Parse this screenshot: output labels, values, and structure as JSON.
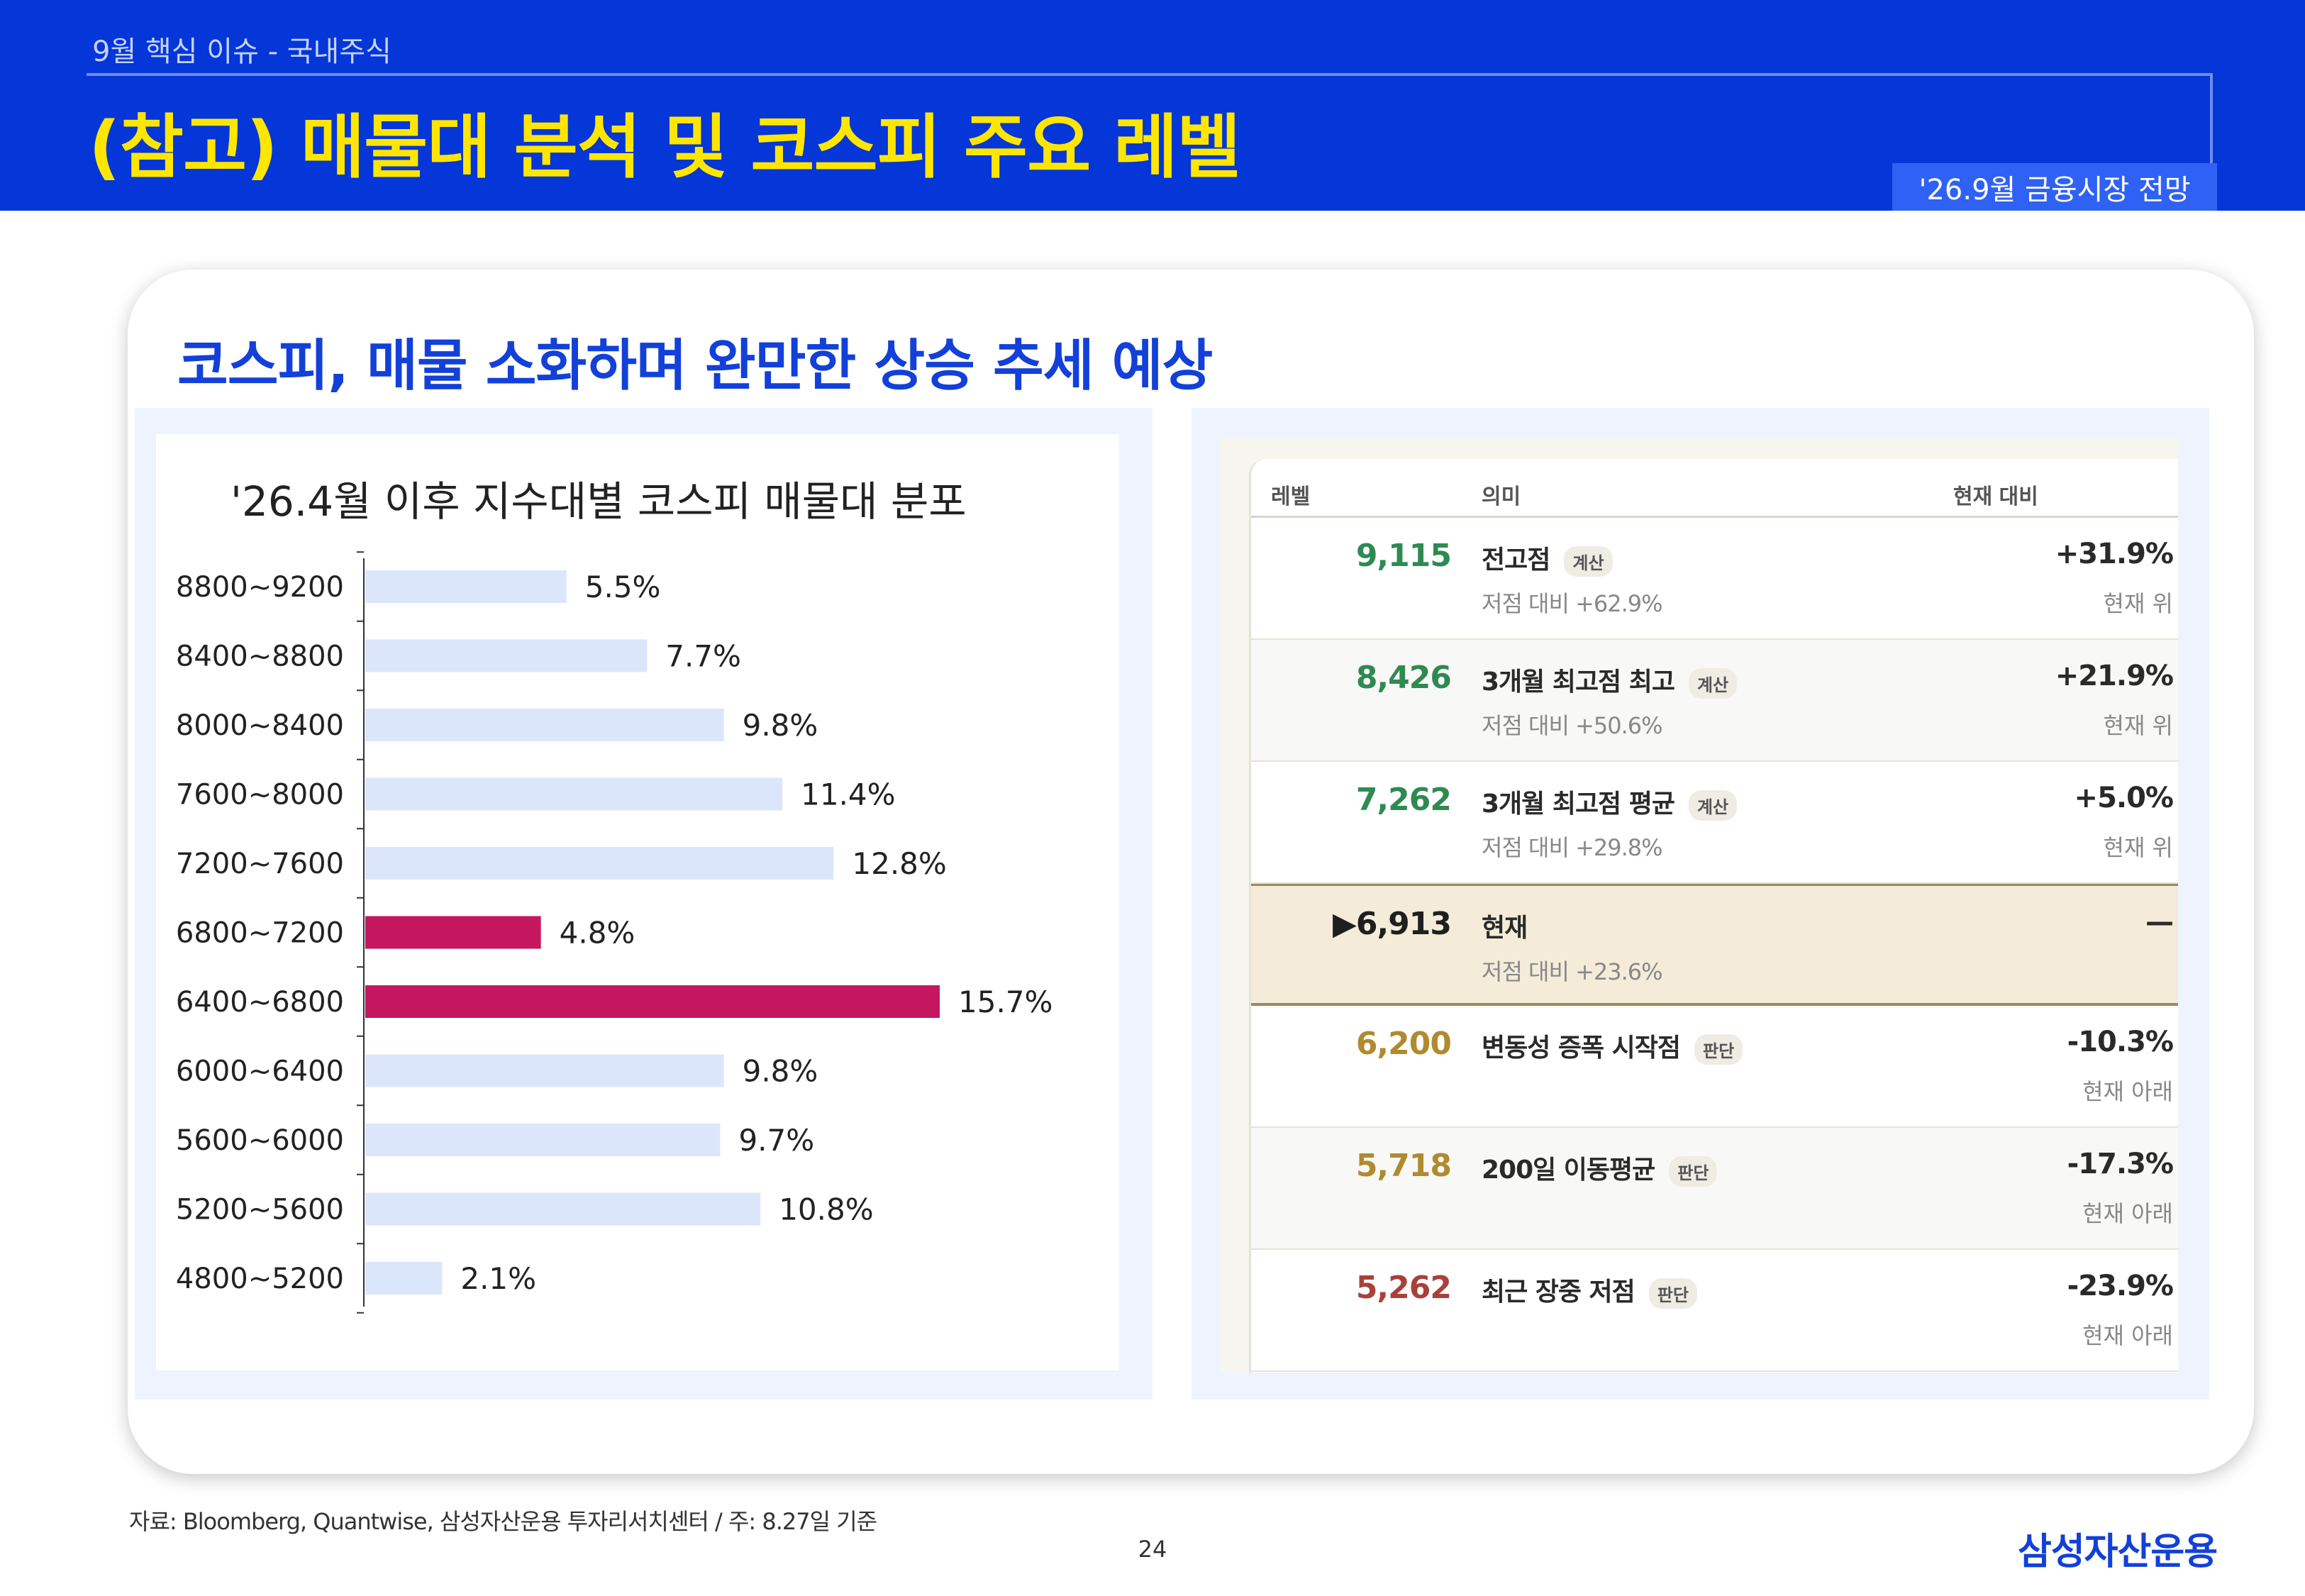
{
  "header": {
    "section": "9월 핵심 이슈 - 국내주식",
    "title": "(참고) 매물대 분석 및 코스피 주요 레벨",
    "badge": "'26.9월 금융시장 전망"
  },
  "card": {
    "headline": "코스피, 매물 소화하며 완만한 상승 추세 예상"
  },
  "chart_data": {
    "type": "bar",
    "orientation": "horizontal",
    "title": "'26.4월 이후 지수대별 코스피 매물대 분포",
    "categories": [
      "8800~9200",
      "8400~8800",
      "8000~8400",
      "7600~8000",
      "7200~7600",
      "6800~7200",
      "6400~6800",
      "6000~6400",
      "5600~6000",
      "5200~5600",
      "4800~5200"
    ],
    "values": [
      5.5,
      7.7,
      9.8,
      11.4,
      12.8,
      4.8,
      15.7,
      9.8,
      9.7,
      10.8,
      2.1
    ],
    "value_labels": [
      "5.5%",
      "7.7%",
      "9.8%",
      "11.4%",
      "12.8%",
      "4.8%",
      "15.7%",
      "9.8%",
      "9.7%",
      "10.8%",
      "2.1%"
    ],
    "highlighted": [
      false,
      false,
      false,
      false,
      false,
      true,
      true,
      false,
      false,
      false,
      false
    ],
    "colors": {
      "normal": "#dce6fb",
      "highlight": "#c4175f"
    },
    "xlim": [
      0,
      16
    ]
  },
  "table": {
    "headers": {
      "level": "레벨",
      "meaning": "의미",
      "vs_current": "현재 대비"
    },
    "rows": [
      {
        "level": "9,115",
        "meaning": "전고점",
        "tag": "계산",
        "sub": "저점 대비 +62.9%",
        "pct": "+31.9%",
        "position": "현재 위",
        "color": "#2f8a52",
        "style": "normal"
      },
      {
        "level": "8,426",
        "meaning": "3개월 최고점 최고",
        "tag": "계산",
        "sub": "저점 대비 +50.6%",
        "pct": "+21.9%",
        "position": "현재 위",
        "color": "#2f8a52",
        "style": "alt"
      },
      {
        "level": "7,262",
        "meaning": "3개월 최고점 평균",
        "tag": "계산",
        "sub": "저점 대비 +29.8%",
        "pct": "+5.0%",
        "position": "현재 위",
        "color": "#2f8a52",
        "style": "normal"
      },
      {
        "level": "▶6,913",
        "meaning": "현재",
        "tag": "",
        "sub": "저점 대비 +23.6%",
        "pct": "—",
        "position": "",
        "color": "#1f1f1f",
        "style": "current"
      },
      {
        "level": "6,200",
        "meaning": "변동성 증폭 시작점",
        "tag": "판단",
        "sub": "",
        "pct": "-10.3%",
        "position": "현재 아래",
        "color": "#b08a2e",
        "style": "normal"
      },
      {
        "level": "5,718",
        "meaning": "200일 이동평균",
        "tag": "판단",
        "sub": "",
        "pct": "-17.3%",
        "position": "현재 아래",
        "color": "#b08a2e",
        "style": "alt"
      },
      {
        "level": "5,262",
        "meaning": "최근 장중 저점",
        "tag": "판단",
        "sub": "",
        "pct": "-23.9%",
        "position": "현재 아래",
        "color": "#a8413a",
        "style": "normal"
      }
    ]
  },
  "footer": {
    "source": "자료: Bloomberg, Quantwise, 삼성자산운용 투자리서치센터 / 주: 8.27일 기준",
    "page": "24",
    "logo": "삼성자산운용"
  }
}
